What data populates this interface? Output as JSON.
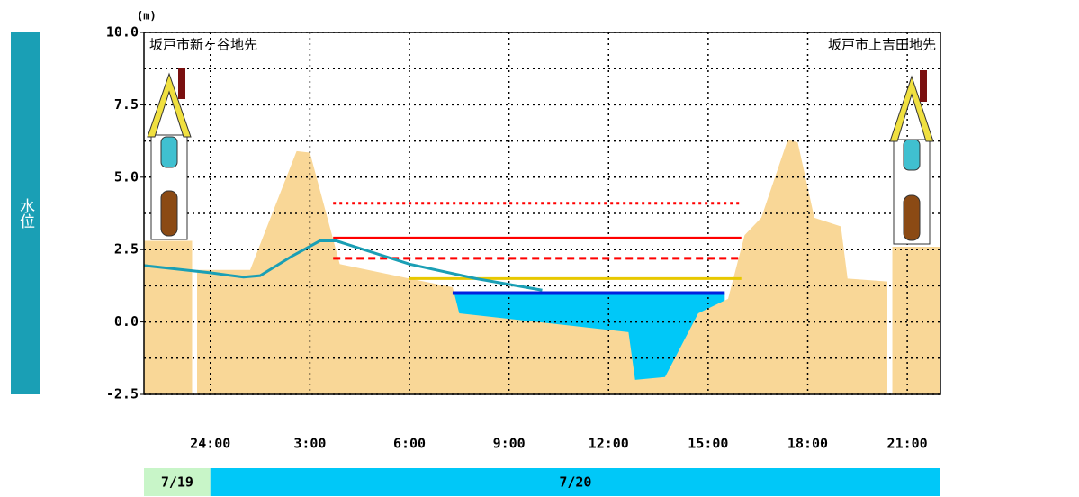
{
  "chart_data": {
    "type": "area",
    "y_unit": "(m)",
    "y_title": "水位",
    "place_left": "坂戸市新ヶ谷地先",
    "place_right": "坂戸市上吉田地先",
    "xlim": [
      -2,
      22
    ],
    "xticks": [
      {
        "value": 0,
        "label": "24:00"
      },
      {
        "value": 3,
        "label": "3:00"
      },
      {
        "value": 6,
        "label": "6:00"
      },
      {
        "value": 9,
        "label": "9:00"
      },
      {
        "value": 12,
        "label": "12:00"
      },
      {
        "value": 15,
        "label": "15:00"
      },
      {
        "value": 18,
        "label": "18:00"
      },
      {
        "value": 21,
        "label": "21:00"
      }
    ],
    "ylim": [
      -2.5,
      10
    ],
    "yticks": [
      {
        "value": 10,
        "label": "10.0"
      },
      7.5,
      {
        "value": 5,
        "label": "5.0"
      },
      2.5,
      {
        "value": 0,
        "label": "0.0"
      },
      -2.5
    ],
    "yminor": [
      8.75,
      6.25,
      3.75,
      1.25,
      -1.25
    ],
    "grid": true,
    "ground": {
      "color": "#f9d797",
      "x": [
        -2,
        -0.55,
        -0.5,
        -0.4,
        1.2,
        2.6,
        3.0,
        3.9,
        6.0,
        7.3,
        7.5,
        12.6,
        12.8,
        13.7,
        14.7,
        15.6,
        16.1,
        16.6,
        17.4,
        17.7,
        18.2,
        19.0,
        19.2,
        20.4,
        20.45,
        20.55,
        22
      ],
      "values": [
        2.8,
        2.8,
        null,
        1.8,
        1.8,
        5.9,
        5.85,
        2.0,
        1.5,
        1.2,
        0.3,
        -0.35,
        -2.0,
        -1.9,
        0.3,
        0.8,
        3.0,
        3.6,
        6.3,
        6.2,
        3.6,
        3.3,
        1.5,
        1.4,
        null,
        2.6,
        2.6
      ]
    },
    "water_level": {
      "color": "#1a9fb5",
      "x": [
        -2,
        0,
        1,
        1.5,
        2.5,
        3.3,
        3.8,
        6,
        8,
        10
      ],
      "values": [
        1.95,
        1.7,
        1.55,
        1.6,
        2.3,
        2.8,
        2.8,
        2.0,
        1.5,
        1.1
      ]
    },
    "water_surface": {
      "color": "#00c8f8",
      "line_color": "#0020e0",
      "x": [
        7.3,
        15.5
      ],
      "value": 1.0
    },
    "levels": [
      {
        "value": 4.1,
        "color": "#ff0000",
        "dash": "dotted",
        "x": [
          3.7,
          16.0
        ]
      },
      {
        "value": 2.9,
        "color": "#ff0000",
        "dash": "solid",
        "x": [
          3.7,
          16.0
        ]
      },
      {
        "value": 2.2,
        "color": "#ff0000",
        "dash": "dashed",
        "x": [
          3.7,
          16.0
        ]
      },
      {
        "value": 1.5,
        "color": "#e8c800",
        "dash": "solid",
        "x": [
          6.0,
          16.0
        ]
      }
    ],
    "date_bands": [
      {
        "label": "7/19",
        "color": "#c8f5c8",
        "x": [
          -2,
          0
        ]
      },
      {
        "label": "7/20",
        "color": "#00c8f8",
        "x": [
          0,
          22
        ]
      }
    ]
  }
}
